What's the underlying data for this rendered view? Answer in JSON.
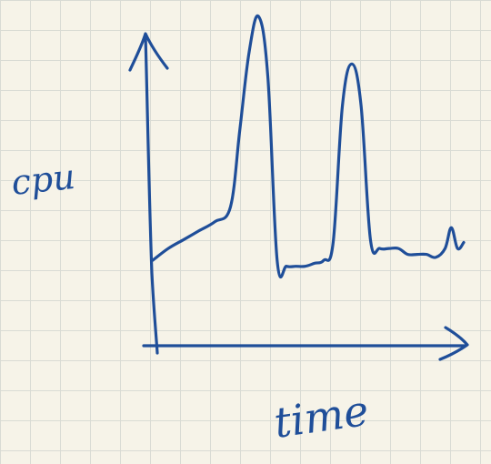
{
  "chart_data": {
    "type": "line",
    "style": "hand-drawn sketch on grid paper",
    "xlabel": "time",
    "ylabel": "cpu",
    "grid": true,
    "series": [
      {
        "color": "#1f4e99",
        "x": [
          0,
          5,
          10,
          15,
          20,
          25,
          28,
          31,
          34,
          37,
          40,
          43,
          46,
          49,
          52,
          55,
          58,
          61,
          64,
          67,
          70,
          73,
          76,
          79,
          82,
          85,
          88,
          91,
          94,
          96,
          98,
          100
        ],
        "y": [
          18,
          22,
          25,
          28,
          31,
          36,
          62,
          88,
          100,
          80,
          18,
          16,
          16,
          16,
          17,
          18,
          24,
          70,
          84,
          70,
          25,
          22,
          22,
          22,
          20,
          20,
          20,
          19,
          22,
          29,
          22,
          24
        ]
      }
    ]
  },
  "paper": {
    "background": "#f6f3e8",
    "grid_color": "#d9dbd4",
    "ink_color": "#1f4e99"
  }
}
